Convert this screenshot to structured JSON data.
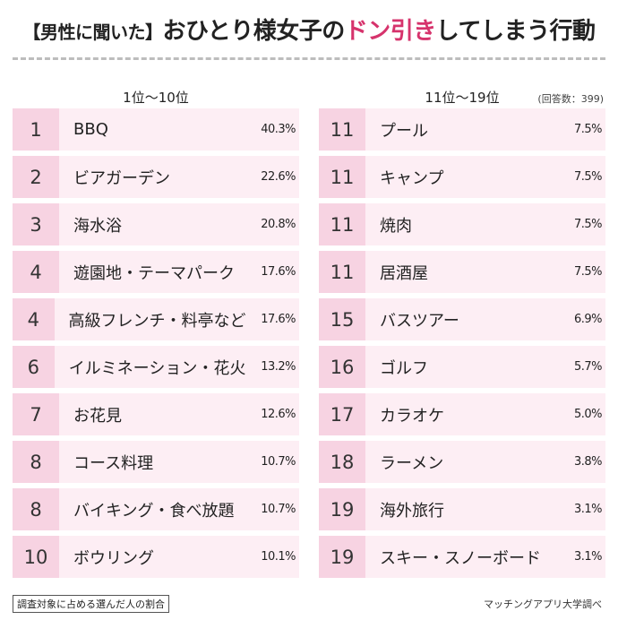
{
  "title": {
    "prefix": "【男性に聞いた】",
    "main_before": "おひとり様女子の",
    "accent": "ドン引き",
    "main_after": "してしまう行動"
  },
  "header": {
    "left": "1位〜10位",
    "right": "11位〜19位",
    "respondents": "(回答数：399)"
  },
  "footer": {
    "note": "調査対象に占める選んだ人の割合",
    "source": "マッチングアプリ大学調べ"
  },
  "colors": {
    "accent": "#d6336c",
    "rank_bg": "#f7d3e2",
    "row_bg": "#fdeef4"
  },
  "chart_data": {
    "type": "table",
    "unit": "%",
    "rows": [
      {
        "rank": "1",
        "label": "BBQ",
        "value": 40.3,
        "value_text": "40.3%"
      },
      {
        "rank": "2",
        "label": "ビアガーデン",
        "value": 22.6,
        "value_text": "22.6%"
      },
      {
        "rank": "3",
        "label": "海水浴",
        "value": 20.8,
        "value_text": "20.8%"
      },
      {
        "rank": "4",
        "label": "遊園地・テーマパーク",
        "value": 17.6,
        "value_text": "17.6%"
      },
      {
        "rank": "4",
        "label": "高級フレンチ・料亭など",
        "value": 17.6,
        "value_text": "17.6%"
      },
      {
        "rank": "6",
        "label": "イルミネーション・花火",
        "value": 13.2,
        "value_text": "13.2%"
      },
      {
        "rank": "7",
        "label": "お花見",
        "value": 12.6,
        "value_text": "12.6%"
      },
      {
        "rank": "8",
        "label": "コース料理",
        "value": 10.7,
        "value_text": "10.7%"
      },
      {
        "rank": "8",
        "label": "バイキング・食べ放題",
        "value": 10.7,
        "value_text": "10.7%"
      },
      {
        "rank": "10",
        "label": "ボウリング",
        "value": 10.1,
        "value_text": "10.1%"
      },
      {
        "rank": "11",
        "label": "プール",
        "value": 7.5,
        "value_text": "7.5%"
      },
      {
        "rank": "11",
        "label": "キャンプ",
        "value": 7.5,
        "value_text": "7.5%"
      },
      {
        "rank": "11",
        "label": "焼肉",
        "value": 7.5,
        "value_text": "7.5%"
      },
      {
        "rank": "11",
        "label": "居酒屋",
        "value": 7.5,
        "value_text": "7.5%"
      },
      {
        "rank": "15",
        "label": "バスツアー",
        "value": 6.9,
        "value_text": "6.9%"
      },
      {
        "rank": "16",
        "label": "ゴルフ",
        "value": 5.7,
        "value_text": "5.7%"
      },
      {
        "rank": "17",
        "label": "カラオケ",
        "value": 5.0,
        "value_text": "5.0%"
      },
      {
        "rank": "18",
        "label": "ラーメン",
        "value": 3.8,
        "value_text": "3.8%"
      },
      {
        "rank": "19",
        "label": "海外旅行",
        "value": 3.1,
        "value_text": "3.1%"
      },
      {
        "rank": "19",
        "label": "スキー・スノーボード",
        "value": 3.1,
        "value_text": "3.1%"
      }
    ]
  }
}
